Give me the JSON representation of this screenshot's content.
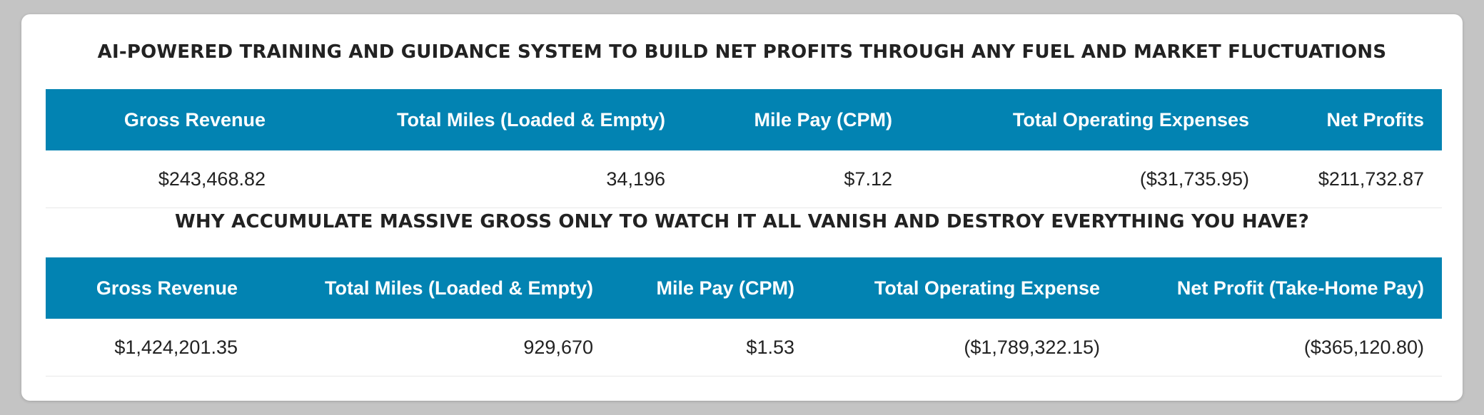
{
  "section1": {
    "title": "AI-POWERED TRAINING AND GUIDANCE SYSTEM TO BUILD NET PROFITS THROUGH ANY FUEL AND MARKET FLUCTUATIONS",
    "headers": [
      "Gross Revenue",
      "Total Miles (Loaded & Empty)",
      "Mile Pay (CPM)",
      "Total Operating Expenses",
      "Net Profits"
    ],
    "row": [
      "$243,468.82",
      "34,196",
      "$7.12",
      "($31,735.95)",
      "$211,732.87"
    ]
  },
  "section2": {
    "title": "WHY ACCUMULATE MASSIVE GROSS ONLY TO WATCH IT ALL VANISH AND DESTROY EVERYTHING YOU HAVE?",
    "headers": [
      "Gross Revenue",
      "Total Miles (Loaded & Empty)",
      "Mile Pay (CPM)",
      "Total Operating Expense",
      "Net Profit (Take-Home Pay)"
    ],
    "row": [
      "$1,424,201.35",
      "929,670",
      "$1.53",
      "($1,789,322.15)",
      "($365,120.80)"
    ]
  },
  "colors": {
    "header_bg": "#0283b2",
    "header_text": "#ffffff",
    "page_bg": "#c4c4c4",
    "card_bg": "#ffffff"
  }
}
